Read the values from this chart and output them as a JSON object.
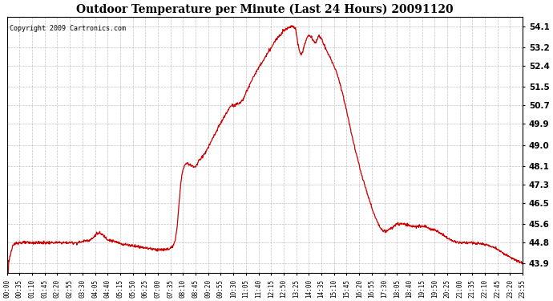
{
  "title": "Outdoor Temperature per Minute (Last 24 Hours) 20091120",
  "copyright": "Copyright 2009 Cartronics.com",
  "line_color": "#cc0000",
  "background_color": "#ffffff",
  "grid_color": "#888888",
  "yticks": [
    43.9,
    44.8,
    45.6,
    46.5,
    47.3,
    48.1,
    49.0,
    49.9,
    50.7,
    51.5,
    52.4,
    53.2,
    54.1
  ],
  "ylim": [
    43.5,
    54.5
  ],
  "xtick_labels": [
    "00:00",
    "00:35",
    "01:10",
    "01:45",
    "02:20",
    "02:55",
    "03:30",
    "04:05",
    "04:40",
    "05:15",
    "05:50",
    "06:25",
    "07:00",
    "07:35",
    "08:10",
    "08:45",
    "09:20",
    "09:55",
    "10:30",
    "11:05",
    "11:40",
    "12:15",
    "12:50",
    "13:25",
    "14:00",
    "14:35",
    "15:10",
    "15:45",
    "16:20",
    "16:55",
    "17:30",
    "18:05",
    "18:40",
    "19:15",
    "19:50",
    "20:25",
    "21:00",
    "21:35",
    "22:10",
    "22:45",
    "23:20",
    "23:55"
  ],
  "n_minutes": 1440,
  "figwidth": 6.9,
  "figheight": 3.75,
  "dpi": 100
}
